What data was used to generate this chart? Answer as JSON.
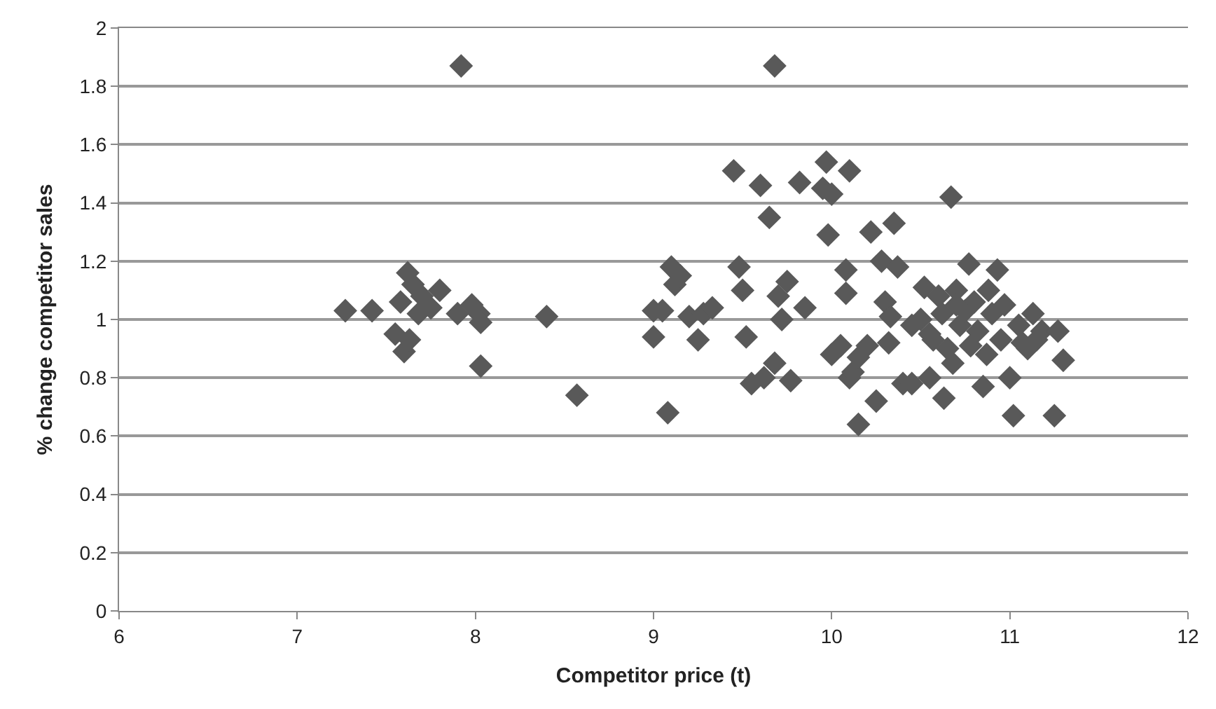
{
  "chart_data": {
    "type": "scatter",
    "xlabel": "Competitor price (t)",
    "ylabel": "% change competitor sales",
    "xlim": [
      6,
      12
    ],
    "xticks": [
      6,
      7,
      8,
      9,
      10,
      11,
      12
    ],
    "ylim": [
      0,
      2
    ],
    "yticks": [
      0,
      0.2,
      0.4,
      0.6,
      0.8,
      1,
      1.2,
      1.4,
      1.6,
      1.8,
      2
    ],
    "grid": "y",
    "marker": "diamond",
    "series": [
      {
        "color": "#595959",
        "x": [
          7.27,
          7.42,
          7.55,
          7.58,
          7.6,
          7.62,
          7.63,
          7.65,
          7.68,
          7.7,
          7.75,
          7.8,
          7.9,
          7.92,
          7.98,
          8.02,
          8.03,
          8.03,
          8.4,
          8.57,
          9.0,
          9.0,
          9.05,
          9.08,
          9.1,
          9.12,
          9.15,
          9.2,
          9.25,
          9.28,
          9.33,
          9.45,
          9.48,
          9.5,
          9.52,
          9.55,
          9.6,
          9.62,
          9.65,
          9.68,
          9.68,
          9.7,
          9.72,
          9.75,
          9.77,
          9.82,
          9.85,
          9.95,
          9.97,
          9.98,
          10.0,
          10.0,
          10.05,
          10.08,
          10.08,
          10.1,
          10.1,
          10.12,
          10.15,
          10.15,
          10.2,
          10.22,
          10.25,
          10.28,
          10.3,
          10.32,
          10.33,
          10.35,
          10.37,
          10.4,
          10.45,
          10.45,
          10.5,
          10.52,
          10.55,
          10.57,
          10.6,
          10.62,
          10.63,
          10.67,
          10.68,
          10.7,
          10.72,
          10.75,
          10.77,
          10.78,
          10.8,
          10.82,
          10.85,
          10.87,
          10.9,
          10.93,
          10.95,
          10.97,
          11.0,
          11.02,
          11.05,
          11.1,
          11.13,
          11.15,
          11.18,
          11.25,
          11.27,
          11.3,
          10.55,
          10.65,
          10.7,
          10.88,
          11.07
        ],
        "values": [
          1.03,
          1.03,
          0.95,
          1.06,
          0.89,
          1.16,
          0.93,
          1.12,
          1.02,
          1.08,
          1.04,
          1.1,
          1.02,
          1.87,
          1.05,
          1.02,
          0.99,
          0.84,
          1.01,
          0.74,
          0.94,
          1.03,
          1.03,
          0.68,
          1.18,
          1.12,
          1.15,
          1.01,
          0.93,
          1.02,
          1.04,
          1.51,
          1.18,
          1.1,
          0.94,
          0.78,
          1.46,
          0.8,
          1.35,
          1.87,
          0.85,
          1.08,
          1.0,
          1.13,
          0.79,
          1.47,
          1.04,
          1.45,
          1.54,
          1.29,
          1.43,
          0.88,
          0.91,
          1.17,
          1.09,
          1.51,
          0.8,
          0.82,
          0.64,
          0.87,
          0.91,
          1.3,
          0.72,
          1.2,
          1.06,
          0.92,
          1.01,
          1.33,
          1.18,
          0.78,
          0.78,
          0.98,
          1.0,
          1.11,
          0.8,
          0.93,
          1.08,
          1.02,
          0.73,
          1.42,
          0.85,
          1.1,
          0.98,
          1.03,
          1.19,
          0.91,
          1.06,
          0.96,
          0.77,
          0.88,
          1.02,
          1.17,
          0.93,
          1.05,
          0.8,
          0.67,
          0.98,
          0.9,
          1.02,
          0.93,
          0.96,
          0.67,
          0.96,
          0.86,
          0.95,
          0.9,
          1.05,
          1.1,
          0.92
        ]
      }
    ]
  }
}
